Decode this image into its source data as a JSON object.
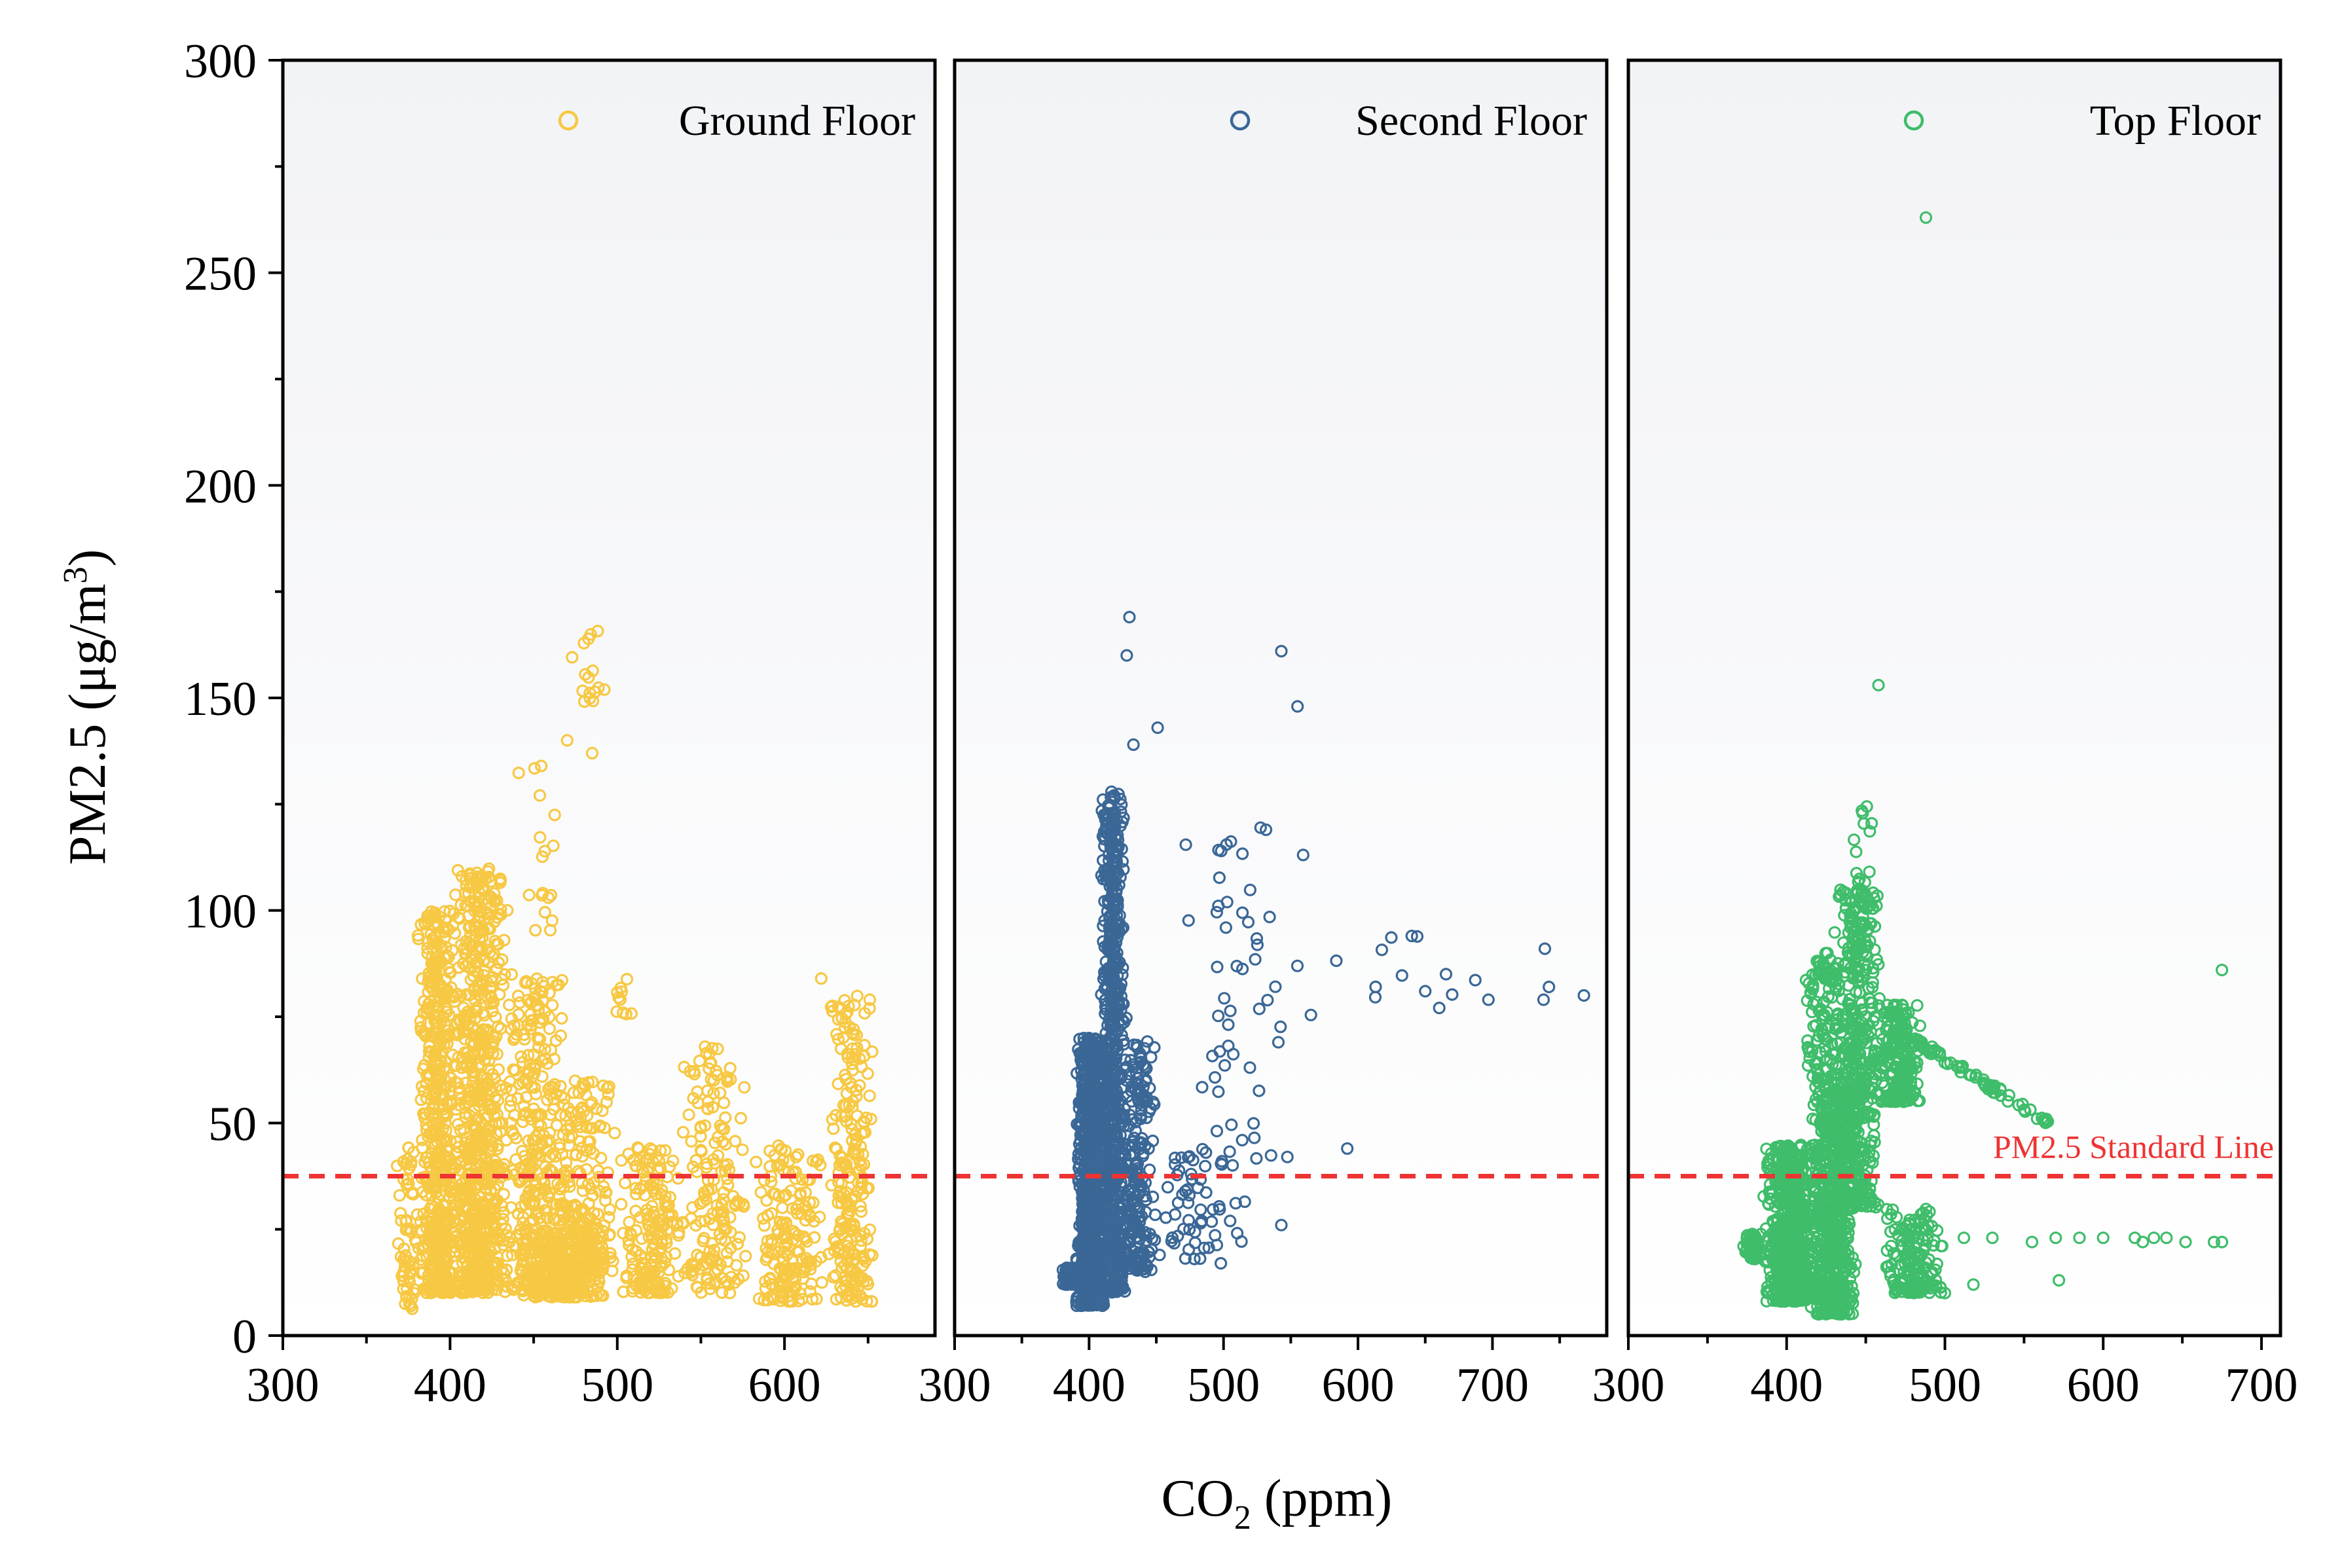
{
  "chart_data": {
    "type": "scatter",
    "ylabel": "PM2.5 (μg/m",
    "ylabel_sup": "3",
    "ylabel_close": ")",
    "xlabel_main": "CO",
    "xlabel_sub": "2",
    "xlabel_unit": " (ppm)",
    "ylim": [
      0,
      300
    ],
    "yticks": [
      "0",
      "50",
      "100",
      "150",
      "200",
      "250",
      "300"
    ],
    "standard_line": {
      "value": 37.5,
      "label": "PM2.5 Standard Line",
      "color": "#ee3333"
    },
    "panels": [
      {
        "name": "Ground Floor",
        "color": "#f7c843",
        "xlim": [
          300,
          690
        ],
        "xticks": [
          "300",
          "400",
          "500",
          "600"
        ],
        "clusters": [
          {
            "x": [
              368,
              380
            ],
            "y": [
              6,
              45
            ],
            "n": 60
          },
          {
            "x": [
              380,
              405
            ],
            "y": [
              10,
              100
            ],
            "n": 520
          },
          {
            "x": [
              400,
              435
            ],
            "y": [
              10,
              110
            ],
            "n": 720
          },
          {
            "x": [
              430,
              470
            ],
            "y": [
              10,
              85
            ],
            "n": 320
          },
          {
            "x": [
              460,
              500
            ],
            "y": [
              15,
              60
            ],
            "n": 200
          },
          {
            "x": [
              500,
              540
            ],
            "y": [
              10,
              45
            ],
            "n": 170
          },
          {
            "x": [
              535,
              580
            ],
            "y": [
              10,
              68
            ],
            "n": 170
          },
          {
            "x": [
              580,
              625
            ],
            "y": [
              8,
              45
            ],
            "n": 170
          },
          {
            "x": [
              625,
              655
            ],
            "y": [
              8,
              80
            ],
            "n": 220
          },
          {
            "x": [
              440,
              500
            ],
            "y": [
              9,
              25
            ],
            "n": 260
          },
          {
            "x": [
              440,
              470
            ],
            "y": [
              95,
              140
            ],
            "n": 18
          },
          {
            "x": [
              470,
              495
            ],
            "y": [
              145,
              166
            ],
            "n": 16
          },
          {
            "x": [
              495,
              510
            ],
            "y": [
              75,
              85
            ],
            "n": 10
          }
        ],
        "extra_points": [
          [
            622,
            84
          ],
          [
            651,
            79
          ],
          [
            485,
            137
          ],
          [
            470,
            140
          ]
        ]
      },
      {
        "name": "Second Floor",
        "color": "#3a6796",
        "xlim": [
          300,
          785
        ],
        "xticks": [
          "300",
          "400",
          "500",
          "600",
          "700"
        ],
        "clusters": [
          {
            "x": [
              380,
              392
            ],
            "y": [
              12,
              16
            ],
            "n": 40
          },
          {
            "x": [
              390,
              412
            ],
            "y": [
              7,
              70
            ],
            "n": 900
          },
          {
            "x": [
              408,
              428
            ],
            "y": [
              10,
              128
            ],
            "n": 700
          },
          {
            "x": [
              425,
              450
            ],
            "y": [
              15,
              70
            ],
            "n": 200
          },
          {
            "x": [
              445,
              520
            ],
            "y": [
              18,
              45
            ],
            "n": 60
          },
          {
            "x": [
              460,
              560
            ],
            "y": [
              40,
              120
            ],
            "n": 55
          },
          {
            "x": [
              560,
              700
            ],
            "y": [
              75,
              95
            ],
            "n": 12
          }
        ],
        "extra_points": [
          [
            430,
            169
          ],
          [
            543,
            161
          ],
          [
            428,
            160
          ],
          [
            555,
            148
          ],
          [
            451,
            143
          ],
          [
            433,
            139
          ],
          [
            739,
            91
          ],
          [
            742,
            82
          ],
          [
            768,
            80
          ],
          [
            697,
            79
          ],
          [
            738,
            79
          ],
          [
            640,
            94
          ],
          [
            650,
            81
          ],
          [
            592,
            44
          ],
          [
            498,
            17
          ],
          [
            543,
            26
          ]
        ]
      },
      {
        "name": "Top Floor",
        "color": "#3fbd6a",
        "xlim": [
          300,
          712
        ],
        "xticks": [
          "300",
          "400",
          "500",
          "600",
          "700"
        ],
        "clusters": [
          {
            "x": [
              372,
              385
            ],
            "y": [
              18,
              24
            ],
            "n": 60
          },
          {
            "x": [
              385,
              420
            ],
            "y": [
              8,
              45
            ],
            "n": 620
          },
          {
            "x": [
              415,
              445
            ],
            "y": [
              5,
              60
            ],
            "n": 620
          },
          {
            "x": [
              430,
              460
            ],
            "y": [
              30,
              105
            ],
            "n": 420
          },
          {
            "x": [
              455,
              485
            ],
            "y": [
              55,
              78
            ],
            "n": 220
          },
          {
            "x": [
              460,
              500
            ],
            "y": [
              10,
              30
            ],
            "n": 160
          },
          {
            "x": [
              410,
              440
            ],
            "y": [
              60,
              90
            ],
            "n": 120
          },
          {
            "x": [
              440,
              460
            ],
            "y": [
              100,
              125
            ],
            "n": 20
          }
        ],
        "extra_points": [
          [
            488,
            263
          ],
          [
            458,
            153
          ],
          [
            675,
            86
          ],
          [
            572,
            13
          ],
          [
            518,
            12
          ],
          [
            500,
            10
          ],
          [
            620,
            23
          ],
          [
            625,
            22
          ],
          [
            632,
            23
          ],
          [
            640,
            23
          ],
          [
            652,
            22
          ],
          [
            670,
            22
          ],
          [
            675,
            22
          ],
          [
            600,
            23
          ],
          [
            585,
            23
          ],
          [
            570,
            23
          ],
          [
            555,
            22
          ],
          [
            530,
            23
          ],
          [
            512,
            23
          ]
        ],
        "trend": {
          "from": [
            470,
            72
          ],
          "to": [
            566,
            50
          ],
          "n": 70
        }
      }
    ]
  }
}
